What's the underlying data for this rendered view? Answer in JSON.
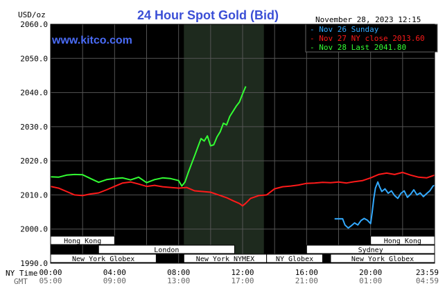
{
  "header": {
    "unit": "USD/oz",
    "title": "24 Hour Spot Gold (Bid)",
    "timestamp": "November 28, 2023 12:15",
    "brand": "www.kitco.com"
  },
  "axis_labels": {
    "ny_time": "NY Time",
    "gmt": "GMT"
  },
  "chart_data": {
    "type": "line",
    "title": "24 Hour Spot Gold (Bid)",
    "ylabel": "USD/oz",
    "ylim": [
      1990,
      2060
    ],
    "y_ticks": [
      "2060.0",
      "2050.0",
      "2040.0",
      "2030.0",
      "2020.0",
      "2010.0",
      "2000.0",
      "1990.0"
    ],
    "xlim_hours": [
      0,
      24
    ],
    "x_ticks_ny": [
      "00:00",
      "04:00",
      "08:00",
      "12:00",
      "16:00",
      "20:00",
      "23:59"
    ],
    "x_ticks_gmt": [
      "05:00",
      "09:00",
      "13:00",
      "17:00",
      "21:00",
      "01:00",
      "04:59"
    ],
    "grid": true,
    "legend_position": "top-right",
    "highlight_hours": [
      8.33,
      13.33
    ],
    "colors": {
      "background": "#000000",
      "grid": "#555555",
      "highlight": "#1e2a1e",
      "nov26": "#33aaff",
      "nov27": "#ff1a1a",
      "nov28": "#33ff33"
    },
    "series": [
      {
        "name": "Nov 26 Sunday",
        "color": "#33aaff",
        "x": [
          17.75,
          18.25,
          18.4,
          18.6,
          18.8,
          19.0,
          19.2,
          19.4,
          19.6,
          19.8,
          20.0,
          20.1,
          20.2,
          20.3,
          20.45,
          20.55,
          20.7,
          20.9,
          21.1,
          21.3,
          21.5,
          21.7,
          21.9,
          22.1,
          22.3,
          22.5,
          22.7,
          22.9,
          23.1,
          23.3,
          23.5,
          23.7,
          23.9,
          24.0
        ],
        "y": [
          2003.0,
          2003.0,
          2001.2,
          2000.3,
          2001.0,
          2001.8,
          2001.2,
          2002.5,
          2003.1,
          2002.6,
          2001.6,
          2005.0,
          2009.0,
          2012.0,
          2013.8,
          2012.5,
          2011.0,
          2011.8,
          2010.5,
          2011.2,
          2009.8,
          2009.0,
          2010.5,
          2011.2,
          2009.3,
          2010.2,
          2011.5,
          2010.0,
          2010.6,
          2009.5,
          2010.4,
          2011.2,
          2012.6,
          2012.8
        ]
      },
      {
        "name": "Nov 27 NY close 2013.60",
        "color": "#ff1a1a",
        "x": [
          0.0,
          0.5,
          1.0,
          1.5,
          2.0,
          2.5,
          3.0,
          3.5,
          4.0,
          4.5,
          5.0,
          5.5,
          6.0,
          6.5,
          7.0,
          7.5,
          8.0,
          8.5,
          9.0,
          9.5,
          10.0,
          10.5,
          11.0,
          11.4,
          11.8,
          12.0,
          12.2,
          12.5,
          13.0,
          13.5,
          14.0,
          14.5,
          15.0,
          15.5,
          16.0,
          16.5,
          17.0,
          17.5,
          18.0,
          18.5,
          19.0,
          19.5,
          20.0,
          20.5,
          21.0,
          21.5,
          22.0,
          22.5,
          23.0,
          23.5,
          24.0
        ],
        "y": [
          2012.5,
          2012.0,
          2011.0,
          2010.0,
          2009.8,
          2010.3,
          2010.6,
          2011.5,
          2012.5,
          2013.5,
          2013.8,
          2013.2,
          2012.5,
          2012.8,
          2012.4,
          2012.2,
          2012.0,
          2012.2,
          2011.2,
          2011.0,
          2010.8,
          2010.0,
          2009.2,
          2008.3,
          2007.5,
          2006.8,
          2007.6,
          2009.0,
          2009.8,
          2010.0,
          2011.8,
          2012.4,
          2012.6,
          2012.9,
          2013.4,
          2013.5,
          2013.7,
          2013.6,
          2013.8,
          2013.5,
          2013.9,
          2014.2,
          2015.0,
          2016.0,
          2016.4,
          2016.0,
          2016.6,
          2015.8,
          2015.2,
          2015.0,
          2015.8
        ]
      },
      {
        "name": "Nov 28 Last 2041.80",
        "color": "#33ff33",
        "x": [
          0.0,
          0.5,
          1.0,
          1.5,
          2.0,
          2.5,
          3.0,
          3.5,
          4.0,
          4.5,
          5.0,
          5.5,
          6.0,
          6.5,
          7.0,
          7.5,
          8.0,
          8.2,
          8.4,
          8.6,
          8.8,
          9.0,
          9.2,
          9.4,
          9.6,
          9.8,
          10.0,
          10.2,
          10.4,
          10.6,
          10.8,
          11.0,
          11.2,
          11.4,
          11.6,
          11.8,
          12.0,
          12.2
        ],
        "y": [
          2015.3,
          2015.2,
          2015.8,
          2016.0,
          2015.9,
          2014.8,
          2013.7,
          2014.5,
          2014.8,
          2015.0,
          2014.4,
          2015.2,
          2013.6,
          2014.5,
          2015.0,
          2014.8,
          2014.2,
          2012.6,
          2013.8,
          2016.5,
          2019.0,
          2021.5,
          2024.0,
          2026.5,
          2025.8,
          2027.3,
          2024.4,
          2024.7,
          2027.0,
          2028.5,
          2031.0,
          2030.5,
          2033.0,
          2034.5,
          2036.0,
          2037.2,
          2039.6,
          2041.8
        ]
      }
    ]
  },
  "sessions": [
    {
      "label": "Hong Kong",
      "row": 0,
      "start": 0.0,
      "end": 4.0
    },
    {
      "label": "Hong Kong",
      "row": 0,
      "start": 20.0,
      "end": 24.0
    },
    {
      "label": "London",
      "row": 1,
      "start": 3.0,
      "end": 11.5
    },
    {
      "label": "Sydney",
      "row": 1,
      "start": 16.0,
      "end": 24.0
    },
    {
      "label": "New York Globex",
      "row": 2,
      "start": 0.0,
      "end": 6.6
    },
    {
      "label": "New York NYMEX",
      "row": 2,
      "start": 8.33,
      "end": 13.5
    },
    {
      "label": "NY Globex",
      "row": 2,
      "start": 13.5,
      "end": 17.0
    },
    {
      "label": "New York Globex",
      "row": 2,
      "start": 17.5,
      "end": 24.0
    }
  ]
}
